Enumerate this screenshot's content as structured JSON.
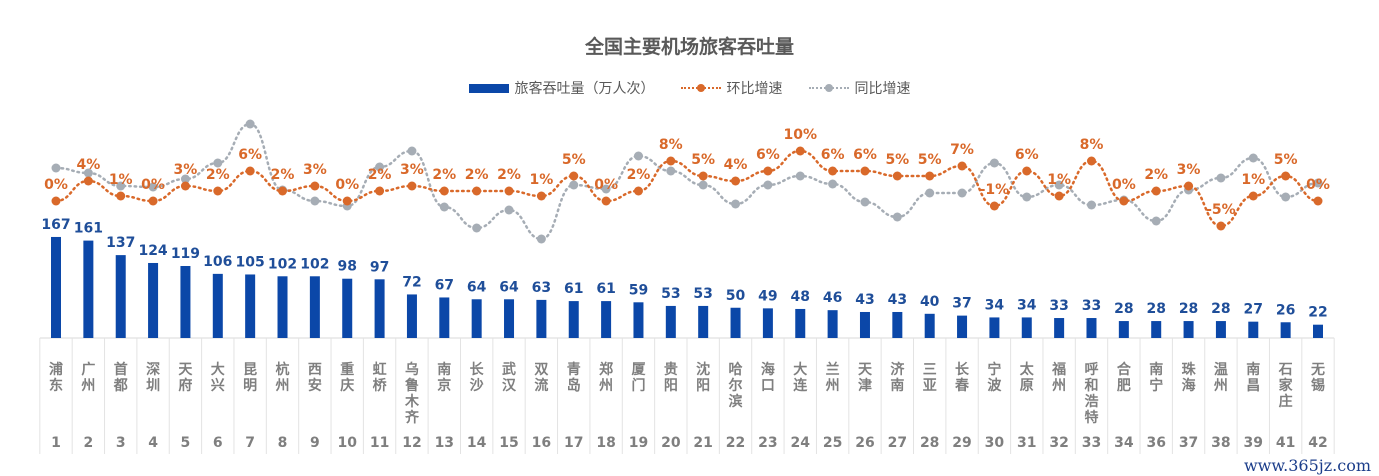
{
  "chart_data": {
    "type": "bar",
    "title": "全国主要机场旅客吞吐量",
    "legend_position": "top",
    "categories": [
      "浦东",
      "广州",
      "首都",
      "深圳",
      "天府",
      "大兴",
      "昆明",
      "杭州",
      "西安",
      "重庆",
      "虹桥",
      "乌鲁木齐",
      "南京",
      "长沙",
      "武汉",
      "双流",
      "青岛",
      "郑州",
      "厦门",
      "贵阳",
      "沈阳",
      "哈尔滨",
      "海口",
      "大连",
      "兰州",
      "天津",
      "济南",
      "三亚",
      "长春",
      "宁波",
      "太原",
      "福州",
      "呼和浩特",
      "合肥",
      "南宁",
      "珠海",
      "温州",
      "南昌",
      "石家庄",
      "无锡"
    ],
    "ranks": [
      "1",
      "2",
      "3",
      "4",
      "5",
      "6",
      "7",
      "8",
      "9",
      "10",
      "11",
      "12",
      "13",
      "14",
      "15",
      "16",
      "17",
      "18",
      "19",
      "20",
      "21",
      "22",
      "23",
      "24",
      "25",
      "26",
      "27",
      "28",
      "29",
      "30",
      "31",
      "32",
      "33",
      "34",
      "36",
      "37",
      "38",
      "39",
      "41",
      "42"
    ],
    "series": [
      {
        "name": "旅客吞吐量（万人次）",
        "type": "bar",
        "color": "#0b47a8",
        "values": [
          167,
          161,
          137,
          124,
          119,
          106,
          105,
          102,
          102,
          98,
          97,
          72,
          67,
          64,
          64,
          63,
          61,
          61,
          59,
          53,
          53,
          50,
          49,
          48,
          46,
          43,
          43,
          40,
          37,
          34,
          34,
          33,
          33,
          28,
          28,
          28,
          28,
          27,
          26,
          22
        ]
      },
      {
        "name": "环比增速",
        "type": "line",
        "color": "#d9692a",
        "unit": "%",
        "values": [
          0,
          4,
          1,
          0,
          3,
          2,
          6,
          2,
          3,
          0,
          2,
          3,
          2,
          2,
          2,
          1,
          5,
          0,
          2,
          8,
          5,
          4,
          6,
          10,
          6,
          6,
          5,
          5,
          7,
          -1,
          6,
          1,
          8,
          0,
          2,
          3,
          -5,
          1,
          5,
          0
        ]
      },
      {
        "name": "同比增速",
        "type": "line",
        "color": "#a6adb5",
        "unit": "%",
        "values": [
          6.6,
          5.6,
          3,
          2.8,
          4.4,
          7.6,
          15.4,
          2.2,
          0,
          -1,
          6.8,
          10,
          -1.2,
          -5.4,
          -1.8,
          -7.6,
          3.2,
          2.4,
          9,
          6,
          3.2,
          -0.6,
          3.2,
          5,
          3.4,
          -0.2,
          -3.2,
          1.6,
          1.6,
          7.6,
          0.8,
          3.2,
          -0.8,
          0.2,
          -4,
          2.2,
          4.6,
          8.6,
          0.8,
          3.6
        ]
      }
    ]
  },
  "watermark": "www.365jz.com"
}
